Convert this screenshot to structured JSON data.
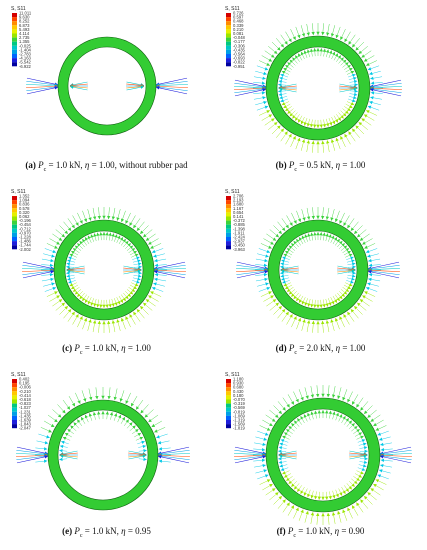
{
  "colors": {
    "ring_fill": "#33cc33",
    "ring_stroke": "#0f5f0f",
    "contour": [
      "#d40000",
      "#ff4500",
      "#ff8c00",
      "#ffc800",
      "#e6f000",
      "#9be600",
      "#3cd23c",
      "#00c882",
      "#00c8c8",
      "#00a0e6",
      "#0064ff",
      "#1e1edc",
      "#0000a0"
    ]
  },
  "panels": [
    {
      "label_letter": "(a)",
      "p_sym": "P",
      "p_sub": "c",
      "p_val": " = 1.0 kN, ",
      "eta_sym": "η",
      "eta_val": " = 1.00, without rubber pad",
      "legend_title": "S, S11",
      "legend_values": [
        "11.011",
        "9.630",
        "8.252",
        "6.873",
        "5.493",
        "4.114",
        "2.735",
        "1.355",
        "-0.025",
        "-1.404",
        "-2.783",
        "-4.163",
        "-5.542",
        "-6.922"
      ],
      "arrow_density": "none"
    },
    {
      "label_letter": "(b)",
      "p_sym": "P",
      "p_sub": "c",
      "p_val": " = 0.5 kN, ",
      "eta_sym": "η",
      "eta_val": " = 1.00",
      "legend_title": "S, S11",
      "legend_values": [
        "0.726",
        "0.597",
        "0.468",
        "0.339",
        "0.210",
        "0.081",
        "-0.048",
        "-0.177",
        "-0.306",
        "-0.435",
        "-0.564",
        "-0.693",
        "-0.822",
        "-0.951"
      ],
      "arrow_density": "full"
    },
    {
      "label_letter": "(c)",
      "p_sym": "P",
      "p_sub": "c",
      "p_val": " = 1.0 kN, ",
      "eta_sym": "η",
      "eta_val": " = 1.00",
      "legend_title": "S, S11",
      "legend_values": [
        "1.352",
        "1.094",
        "0.836",
        "0.578",
        "0.320",
        "0.062",
        "-0.196",
        "-0.454",
        "-0.712",
        "-0.970",
        "-1.228",
        "-1.486",
        "-1.744",
        "-2.002"
      ],
      "arrow_density": "full"
    },
    {
      "label_letter": "(d)",
      "p_sym": "P",
      "p_sub": "c",
      "p_val": " = 2.0 kN, ",
      "eta_sym": "η",
      "eta_val": " = 1.00",
      "legend_title": "S, S11",
      "legend_values": [
        "2.706",
        "2.193",
        "1.680",
        "1.167",
        "0.654",
        "0.141",
        "-0.372",
        "-0.885",
        "-1.398",
        "-1.911",
        "-2.424",
        "-2.937",
        "-3.450",
        "-3.963"
      ],
      "arrow_density": "full"
    },
    {
      "label_letter": "(e)",
      "p_sym": "P",
      "p_sub": "c",
      "p_val": " = 1.0 kN, ",
      "eta_sym": "η",
      "eta_val": " = 0.95",
      "legend_title": "S, S11",
      "legend_values": [
        "0.402",
        "0.195",
        "-0.006",
        "-0.210",
        "-0.414",
        "-0.618",
        "-0.823",
        "-1.027",
        "-1.231",
        "-1.435",
        "-1.639",
        "-1.843",
        "-2.047"
      ],
      "arrow_density": "partial"
    },
    {
      "label_letter": "(f)",
      "p_sym": "P",
      "p_sub": "c",
      "p_val": " = 1.0 kN, ",
      "eta_sym": "η",
      "eta_val": " = 0.90",
      "legend_title": "S, S11",
      "legend_values": [
        "1.180",
        "0.930",
        "0.680",
        "0.430",
        "0.180",
        "-0.070",
        "-0.319",
        "-0.569",
        "-0.819",
        "-1.069",
        "-1.319",
        "-1.569",
        "-1.819"
      ],
      "arrow_density": "full"
    }
  ]
}
